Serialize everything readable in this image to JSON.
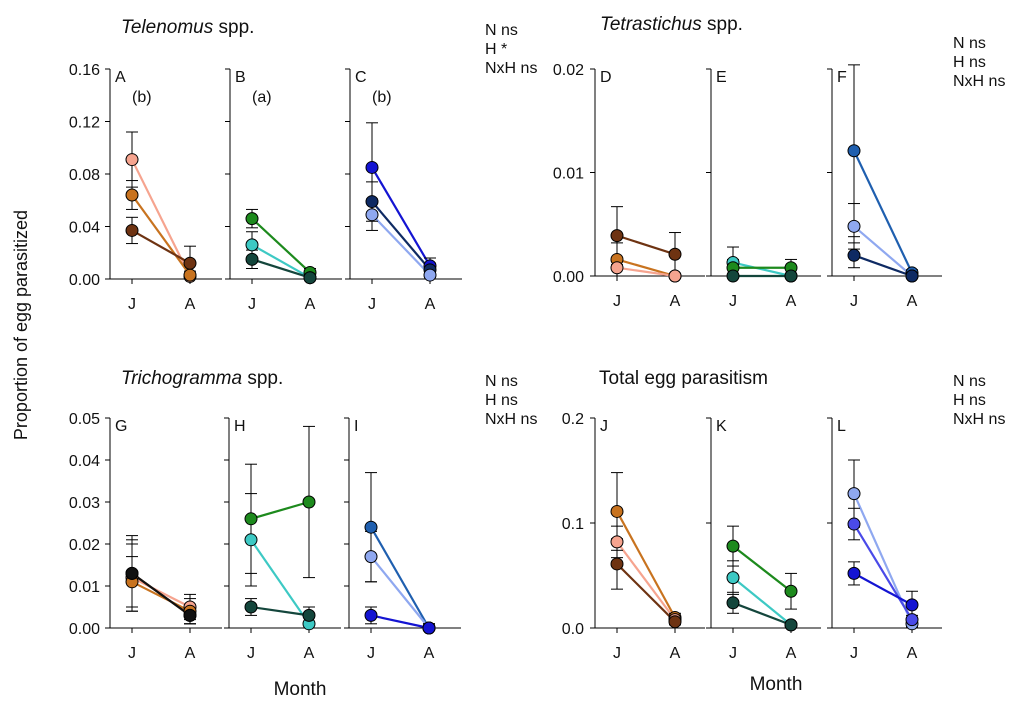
{
  "figure": {
    "ylabel": "Proportion of egg parasitized",
    "xlabel_left": "Month",
    "xlabel_right": "Month"
  },
  "colors": {
    "light_salmon": "#F6A48F",
    "orange": "#C8731F",
    "brown": "#6E3312",
    "green": "#1D8A1D",
    "cyan": "#3DC9C4",
    "dark_teal": "#14463C",
    "light_blue": "#8FA8F0",
    "blue": "#1414D2",
    "dark_navy": "#0E2A63",
    "steel_blue": "#1F5FAF",
    "mid_blue": "#4A4AE8",
    "black": "#111111"
  },
  "chart_data": [
    {
      "id": "telenomus",
      "type": "line",
      "title_italic": "Telenomus",
      "title_rest": " spp.",
      "stats": [
        "N ns",
        "H *",
        "NxH ns"
      ],
      "ylim": [
        0,
        0.16
      ],
      "yticks": [
        "0.00",
        "0.04",
        "0.08",
        "0.12",
        "0.16"
      ],
      "x": [
        "J",
        "A"
      ],
      "panels": [
        {
          "letter": "A",
          "note": "(b)",
          "series": [
            {
              "color": "light_salmon",
              "values": [
                0.091,
                0.002
              ],
              "err": [
                0.021,
                0.002
              ]
            },
            {
              "color": "orange",
              "values": [
                0.064,
                0.003
              ],
              "err": [
                0.011,
                0.003
              ]
            },
            {
              "color": "brown",
              "values": [
                0.037,
                0.012
              ],
              "err": [
                0.01,
                0.013
              ]
            }
          ]
        },
        {
          "letter": "B",
          "note": "(a)",
          "series": [
            {
              "color": "green",
              "values": [
                0.046,
                0.005
              ],
              "err": [
                0.007,
                0.003
              ]
            },
            {
              "color": "cyan",
              "values": [
                0.026,
                0.001
              ],
              "err": [
                0.01,
                0.002
              ]
            },
            {
              "color": "dark_teal",
              "values": [
                0.015,
                0.001
              ],
              "err": [
                0.007,
                0.001
              ]
            }
          ]
        },
        {
          "letter": "C",
          "note": "(b)",
          "series": [
            {
              "color": "blue",
              "values": [
                0.085,
                0.01
              ],
              "err": [
                0.034,
                0.006
              ]
            },
            {
              "color": "dark_navy",
              "values": [
                0.059,
                0.007
              ],
              "err": [
                0.015,
                0.005
              ]
            },
            {
              "color": "light_blue",
              "values": [
                0.049,
                0.003
              ],
              "err": [
                0.012,
                0.003
              ]
            }
          ]
        }
      ]
    },
    {
      "id": "tetrastichus",
      "type": "line",
      "title_italic": "Tetrastichus",
      "title_rest": " spp.",
      "stats": [
        "N ns",
        "H ns",
        "NxH ns"
      ],
      "ylim": [
        0,
        0.02
      ],
      "yticks": [
        "0.00",
        "0.01",
        "0.02"
      ],
      "x": [
        "J",
        "A"
      ],
      "panels": [
        {
          "letter": "D",
          "note": "",
          "series": [
            {
              "color": "brown",
              "values": [
                0.0039,
                0.0021
              ],
              "err": [
                0.0028,
                0.0021
              ]
            },
            {
              "color": "orange",
              "values": [
                0.0016,
                0.0
              ],
              "err": [
                0.0016,
                0.0
              ]
            },
            {
              "color": "light_salmon",
              "values": [
                0.0008,
                0.0
              ],
              "err": [
                0.0008,
                0.0
              ]
            }
          ]
        },
        {
          "letter": "E",
          "note": "",
          "series": [
            {
              "color": "cyan",
              "values": [
                0.0013,
                0.0
              ],
              "err": [
                0.0015,
                0.0
              ]
            },
            {
              "color": "green",
              "values": [
                0.0008,
                0.0008
              ],
              "err": [
                0.0008,
                0.0008
              ]
            },
            {
              "color": "dark_teal",
              "values": [
                0.0,
                0.0
              ],
              "err": [
                0.0,
                0.0
              ]
            }
          ]
        },
        {
          "letter": "F",
          "note": "",
          "series": [
            {
              "color": "steel_blue",
              "values": [
                0.0121,
                0.0003
              ],
              "err": [
                0.0083,
                0.0003
              ]
            },
            {
              "color": "light_blue",
              "values": [
                0.0048,
                0.0
              ],
              "err": [
                0.0022,
                0.0
              ]
            },
            {
              "color": "dark_navy",
              "values": [
                0.002,
                0.0
              ],
              "err": [
                0.0012,
                0.0
              ]
            }
          ]
        }
      ]
    },
    {
      "id": "trichogramma",
      "type": "line",
      "title_italic": "Trichogramma",
      "title_rest": " spp.",
      "stats": [
        "N ns",
        "H ns",
        "NxH ns"
      ],
      "ylim": [
        0,
        0.05
      ],
      "yticks": [
        "0.00",
        "0.01",
        "0.02",
        "0.03",
        "0.04",
        "0.05"
      ],
      "x": [
        "J",
        "A"
      ],
      "panels": [
        {
          "letter": "G",
          "note": "",
          "series": [
            {
              "color": "light_salmon",
              "values": [
                0.012,
                0.005
              ],
              "err": [
                0.008,
                0.003
              ]
            },
            {
              "color": "orange",
              "values": [
                0.011,
                0.004
              ],
              "err": [
                0.006,
                0.003
              ]
            },
            {
              "color": "brown",
              "values": [
                0.013,
                0.003
              ],
              "err": [
                0.008,
                0.002
              ]
            },
            {
              "color": "black",
              "values": [
                0.013,
                0.003
              ],
              "err": [
                0.009,
                0.002
              ]
            }
          ]
        },
        {
          "letter": "H",
          "note": "",
          "series": [
            {
              "color": "green",
              "values": [
                0.026,
                0.03
              ],
              "err": [
                0.013,
                0.018
              ]
            },
            {
              "color": "cyan",
              "values": [
                0.021,
                0.001
              ],
              "err": [
                0.011,
                0.002
              ]
            },
            {
              "color": "dark_teal",
              "values": [
                0.005,
                0.003
              ],
              "err": [
                0.002,
                0.002
              ]
            }
          ]
        },
        {
          "letter": "I",
          "note": "",
          "series": [
            {
              "color": "steel_blue",
              "values": [
                0.024,
                0.0
              ],
              "err": [
                0.013,
                0.001
              ]
            },
            {
              "color": "light_blue",
              "values": [
                0.017,
                0.0
              ],
              "err": [
                0.006,
                0.001
              ]
            },
            {
              "color": "blue",
              "values": [
                0.003,
                0.0
              ],
              "err": [
                0.002,
                0.001
              ]
            }
          ]
        }
      ]
    },
    {
      "id": "total",
      "type": "line",
      "title_italic": "",
      "title_rest": "Total egg parasitism",
      "stats": [
        "N ns",
        "H ns",
        "NxH ns"
      ],
      "ylim": [
        0,
        0.2
      ],
      "yticks": [
        "0.0",
        "0.1",
        "0.2"
      ],
      "x": [
        "J",
        "A"
      ],
      "panels": [
        {
          "letter": "J",
          "note": "",
          "series": [
            {
              "color": "orange",
              "values": [
                0.111,
                0.01
              ],
              "err": [
                0.037,
                0.004
              ]
            },
            {
              "color": "light_salmon",
              "values": [
                0.082,
                0.008
              ],
              "err": [
                0.015,
                0.004
              ]
            },
            {
              "color": "brown",
              "values": [
                0.061,
                0.006
              ],
              "err": [
                0.024,
                0.003
              ]
            }
          ]
        },
        {
          "letter": "K",
          "note": "",
          "series": [
            {
              "color": "green",
              "values": [
                0.078,
                0.035
              ],
              "err": [
                0.019,
                0.017
              ]
            },
            {
              "color": "cyan",
              "values": [
                0.048,
                0.003
              ],
              "err": [
                0.016,
                0.002
              ]
            },
            {
              "color": "dark_teal",
              "values": [
                0.024,
                0.003
              ],
              "err": [
                0.01,
                0.002
              ]
            }
          ]
        },
        {
          "letter": "L",
          "note": "",
          "series": [
            {
              "color": "light_blue",
              "values": [
                0.128,
                0.004
              ],
              "err": [
                0.032,
                0.003
              ]
            },
            {
              "color": "mid_blue",
              "values": [
                0.099,
                0.008
              ],
              "err": [
                0.015,
                0.004
              ]
            },
            {
              "color": "blue",
              "values": [
                0.052,
                0.022
              ],
              "err": [
                0.011,
                0.013
              ]
            }
          ]
        }
      ]
    }
  ]
}
